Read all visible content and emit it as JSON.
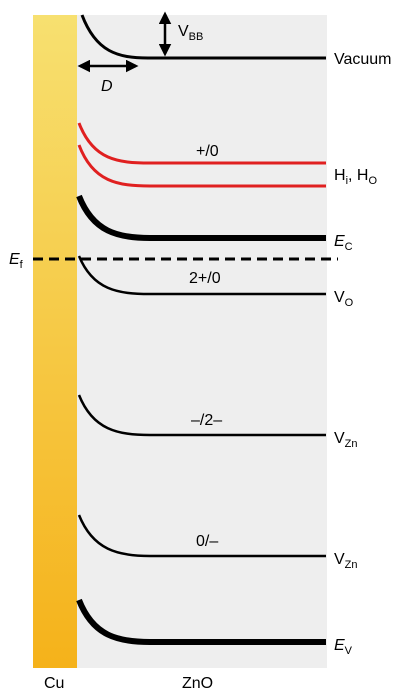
{
  "materials": {
    "metal": "Cu",
    "semiconductor": "ZnO"
  },
  "annotations": {
    "band_bending_main": "V",
    "band_bending_sub": "BB",
    "depletion_width": "D",
    "fermi_main": "E",
    "fermi_sub": "f"
  },
  "levels": [
    {
      "id": "vacuum",
      "main": "Vacuum",
      "sub": "",
      "transition": ""
    },
    {
      "id": "h-levels",
      "main": "H",
      "sub": "i",
      "main2": ", H",
      "sub2": "O",
      "transition": "+/0"
    },
    {
      "id": "conduction-band",
      "main": "E",
      "sub": "C",
      "transition": ""
    },
    {
      "id": "oxygen-vacancy",
      "main": "V",
      "sub": "O",
      "transition": "2+/0"
    },
    {
      "id": "zinc-vacancy-deep",
      "main": "V",
      "sub": "Zn",
      "transition": "–/2–"
    },
    {
      "id": "zinc-vacancy-shallow",
      "main": "V",
      "sub": "Zn",
      "transition": "0/–"
    },
    {
      "id": "valence-band",
      "main": "E",
      "sub": "V",
      "transition": ""
    }
  ],
  "colors": {
    "metal_gradient_top": "#f7e070",
    "metal_gradient_bottom": "#f5b21a",
    "metal_label": "#f0a818",
    "semiconductor_bg": "#eeeeee",
    "hydrogen_level": "#e02020",
    "level_line": "#000000"
  }
}
